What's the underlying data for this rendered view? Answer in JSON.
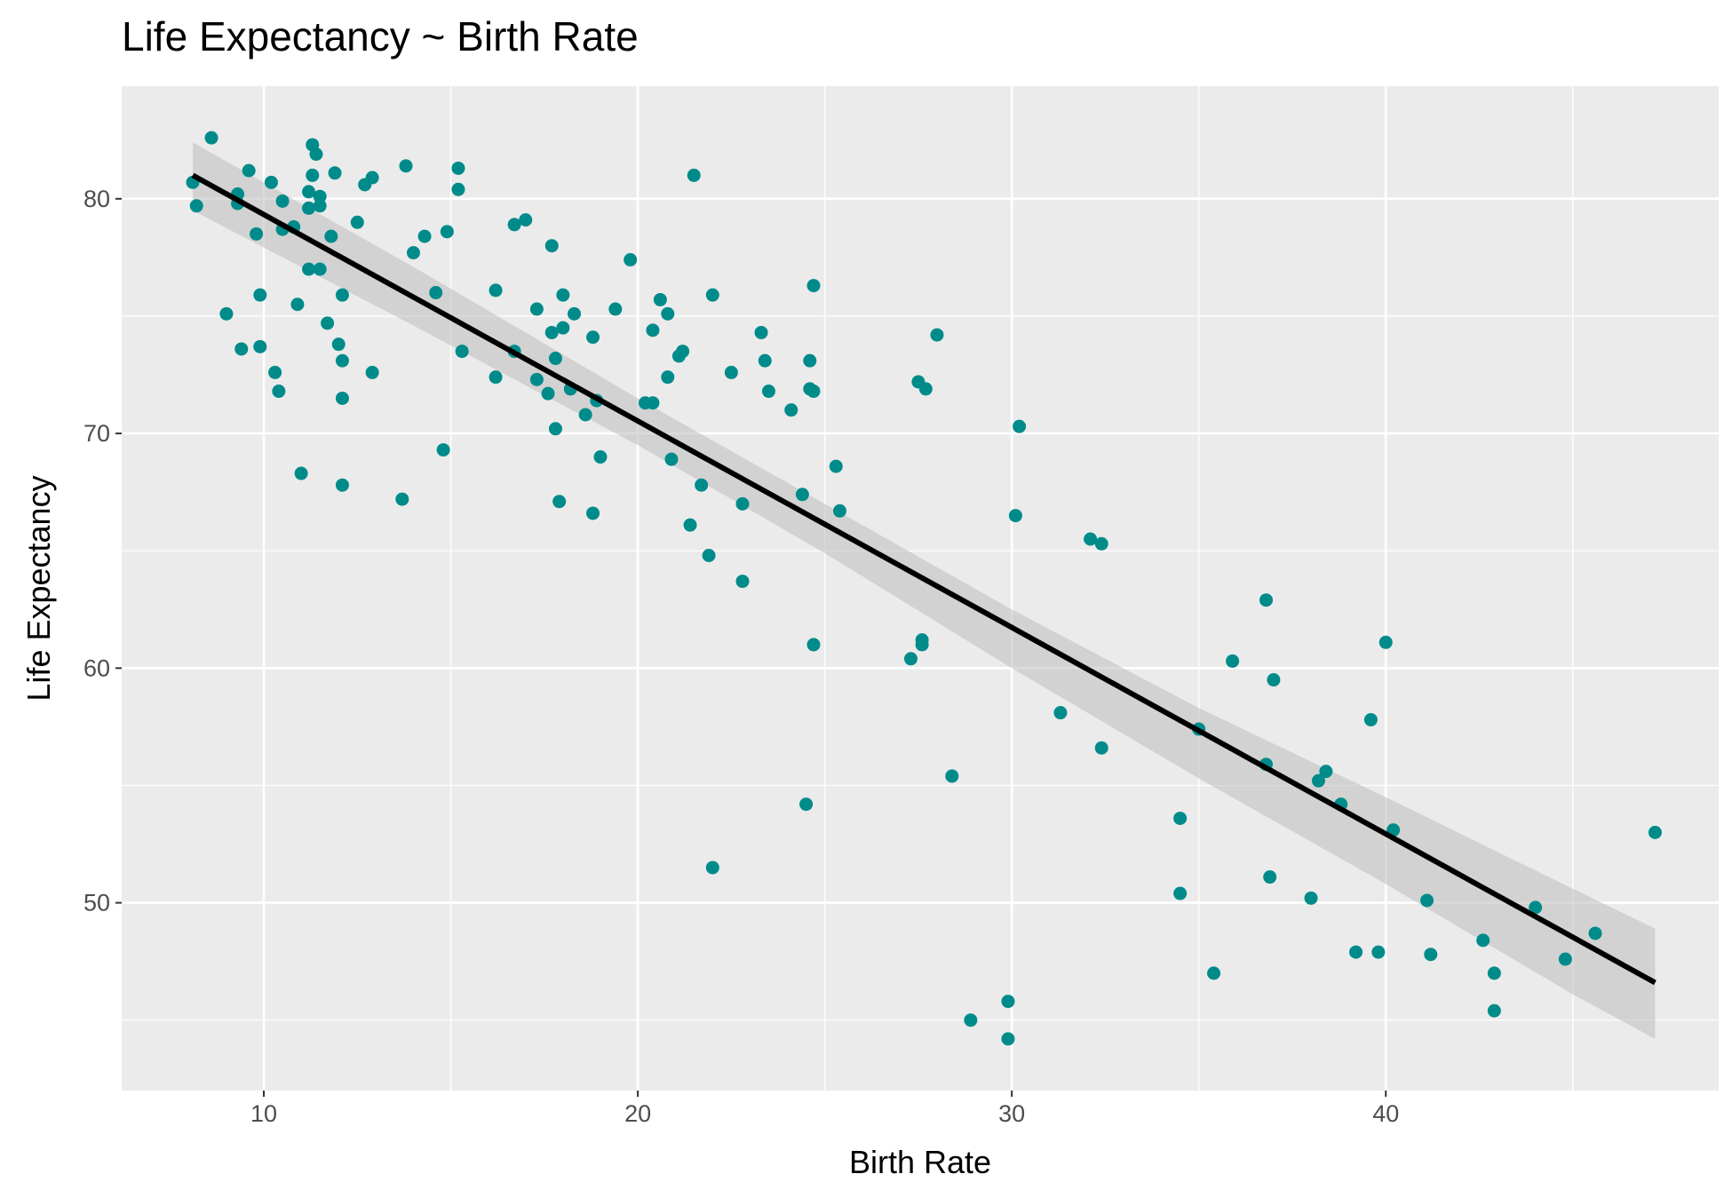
{
  "chart_data": {
    "type": "scatter",
    "title": "Life Expectancy ~ Birth Rate",
    "xlabel": "Birth Rate",
    "ylabel": "Life Expectancy",
    "xlim": [
      6.2,
      48.9
    ],
    "ylim": [
      42.0,
      84.8
    ],
    "x_ticks": [
      10,
      20,
      30,
      40
    ],
    "y_ticks": [
      50,
      60,
      70,
      80
    ],
    "grid": true,
    "panel_background": "#EBEBEB",
    "point_color": "#008B8B",
    "line_color": "#000000",
    "ribbon_color": "#BEBEBE",
    "points": [
      {
        "x": 8.1,
        "y": 80.7
      },
      {
        "x": 8.6,
        "y": 82.6
      },
      {
        "x": 8.2,
        "y": 79.7
      },
      {
        "x": 9.0,
        "y": 75.1
      },
      {
        "x": 9.3,
        "y": 80.2
      },
      {
        "x": 9.6,
        "y": 81.2
      },
      {
        "x": 9.3,
        "y": 79.8
      },
      {
        "x": 9.8,
        "y": 78.5
      },
      {
        "x": 9.9,
        "y": 75.9
      },
      {
        "x": 9.9,
        "y": 73.7
      },
      {
        "x": 9.4,
        "y": 73.6
      },
      {
        "x": 10.2,
        "y": 80.7
      },
      {
        "x": 10.5,
        "y": 79.9
      },
      {
        "x": 10.5,
        "y": 78.7
      },
      {
        "x": 10.8,
        "y": 78.8
      },
      {
        "x": 10.3,
        "y": 72.6
      },
      {
        "x": 10.4,
        "y": 71.8
      },
      {
        "x": 10.9,
        "y": 75.5
      },
      {
        "x": 11.0,
        "y": 68.3
      },
      {
        "x": 11.3,
        "y": 82.3
      },
      {
        "x": 11.4,
        "y": 81.9
      },
      {
        "x": 11.3,
        "y": 81.0
      },
      {
        "x": 11.2,
        "y": 80.3
      },
      {
        "x": 11.5,
        "y": 80.1
      },
      {
        "x": 11.5,
        "y": 79.7
      },
      {
        "x": 11.2,
        "y": 79.6
      },
      {
        "x": 11.2,
        "y": 77.0
      },
      {
        "x": 11.5,
        "y": 77.0
      },
      {
        "x": 11.9,
        "y": 81.1
      },
      {
        "x": 11.8,
        "y": 78.4
      },
      {
        "x": 11.7,
        "y": 74.7
      },
      {
        "x": 12.0,
        "y": 73.8
      },
      {
        "x": 12.1,
        "y": 75.9
      },
      {
        "x": 12.1,
        "y": 73.1
      },
      {
        "x": 12.1,
        "y": 71.5
      },
      {
        "x": 12.1,
        "y": 67.8
      },
      {
        "x": 12.5,
        "y": 79.0
      },
      {
        "x": 12.7,
        "y": 80.6
      },
      {
        "x": 12.9,
        "y": 80.9
      },
      {
        "x": 12.9,
        "y": 72.6
      },
      {
        "x": 13.7,
        "y": 67.2
      },
      {
        "x": 13.8,
        "y": 81.4
      },
      {
        "x": 14.0,
        "y": 77.7
      },
      {
        "x": 14.3,
        "y": 78.4
      },
      {
        "x": 14.6,
        "y": 76.0
      },
      {
        "x": 14.8,
        "y": 69.3
      },
      {
        "x": 14.9,
        "y": 78.6
      },
      {
        "x": 15.2,
        "y": 81.3
      },
      {
        "x": 15.2,
        "y": 80.4
      },
      {
        "x": 15.3,
        "y": 73.5
      },
      {
        "x": 16.2,
        "y": 76.1
      },
      {
        "x": 16.2,
        "y": 72.4
      },
      {
        "x": 16.7,
        "y": 78.9
      },
      {
        "x": 17.0,
        "y": 79.1
      },
      {
        "x": 16.7,
        "y": 73.5
      },
      {
        "x": 17.3,
        "y": 75.3
      },
      {
        "x": 17.3,
        "y": 72.3
      },
      {
        "x": 17.6,
        "y": 71.7
      },
      {
        "x": 17.7,
        "y": 78.0
      },
      {
        "x": 17.7,
        "y": 74.3
      },
      {
        "x": 17.8,
        "y": 73.2
      },
      {
        "x": 17.8,
        "y": 70.2
      },
      {
        "x": 17.9,
        "y": 67.1
      },
      {
        "x": 18.0,
        "y": 75.9
      },
      {
        "x": 18.0,
        "y": 74.5
      },
      {
        "x": 18.2,
        "y": 71.9
      },
      {
        "x": 18.3,
        "y": 75.1
      },
      {
        "x": 18.6,
        "y": 70.8
      },
      {
        "x": 18.8,
        "y": 74.1
      },
      {
        "x": 18.9,
        "y": 71.4
      },
      {
        "x": 18.8,
        "y": 66.6
      },
      {
        "x": 19.0,
        "y": 69.0
      },
      {
        "x": 19.4,
        "y": 75.3
      },
      {
        "x": 19.8,
        "y": 77.4
      },
      {
        "x": 20.2,
        "y": 71.3
      },
      {
        "x": 20.4,
        "y": 74.4
      },
      {
        "x": 20.4,
        "y": 71.3
      },
      {
        "x": 20.6,
        "y": 75.7
      },
      {
        "x": 20.8,
        "y": 75.1
      },
      {
        "x": 20.8,
        "y": 72.4
      },
      {
        "x": 20.9,
        "y": 68.9
      },
      {
        "x": 21.1,
        "y": 73.3
      },
      {
        "x": 21.2,
        "y": 73.5
      },
      {
        "x": 21.4,
        "y": 66.1
      },
      {
        "x": 21.5,
        "y": 81.0
      },
      {
        "x": 21.7,
        "y": 67.8
      },
      {
        "x": 21.9,
        "y": 64.8
      },
      {
        "x": 22.0,
        "y": 75.9
      },
      {
        "x": 22.0,
        "y": 51.5
      },
      {
        "x": 22.5,
        "y": 72.6
      },
      {
        "x": 22.8,
        "y": 67.0
      },
      {
        "x": 22.8,
        "y": 63.7
      },
      {
        "x": 23.3,
        "y": 74.3
      },
      {
        "x": 23.4,
        "y": 73.1
      },
      {
        "x": 23.5,
        "y": 71.8
      },
      {
        "x": 24.1,
        "y": 71.0
      },
      {
        "x": 24.4,
        "y": 67.4
      },
      {
        "x": 24.5,
        "y": 54.2
      },
      {
        "x": 24.6,
        "y": 73.1
      },
      {
        "x": 24.6,
        "y": 71.9
      },
      {
        "x": 24.7,
        "y": 71.8
      },
      {
        "x": 24.7,
        "y": 76.3
      },
      {
        "x": 24.7,
        "y": 61.0
      },
      {
        "x": 25.3,
        "y": 68.6
      },
      {
        "x": 25.4,
        "y": 66.7
      },
      {
        "x": 27.3,
        "y": 60.4
      },
      {
        "x": 27.5,
        "y": 72.2
      },
      {
        "x": 27.6,
        "y": 61.2
      },
      {
        "x": 27.6,
        "y": 61.0
      },
      {
        "x": 27.7,
        "y": 71.9
      },
      {
        "x": 28.0,
        "y": 74.2
      },
      {
        "x": 28.4,
        "y": 55.4
      },
      {
        "x": 28.9,
        "y": 45.0
      },
      {
        "x": 29.9,
        "y": 45.8
      },
      {
        "x": 29.9,
        "y": 44.2
      },
      {
        "x": 30.1,
        "y": 66.5
      },
      {
        "x": 30.2,
        "y": 70.3
      },
      {
        "x": 31.3,
        "y": 58.1
      },
      {
        "x": 32.1,
        "y": 65.5
      },
      {
        "x": 32.4,
        "y": 65.3
      },
      {
        "x": 32.4,
        "y": 56.6
      },
      {
        "x": 34.5,
        "y": 53.6
      },
      {
        "x": 34.5,
        "y": 50.4
      },
      {
        "x": 35.0,
        "y": 57.4
      },
      {
        "x": 35.4,
        "y": 47.0
      },
      {
        "x": 35.9,
        "y": 60.3
      },
      {
        "x": 36.8,
        "y": 62.9
      },
      {
        "x": 36.8,
        "y": 55.9
      },
      {
        "x": 36.9,
        "y": 51.1
      },
      {
        "x": 37.0,
        "y": 59.5
      },
      {
        "x": 38.0,
        "y": 50.2
      },
      {
        "x": 38.2,
        "y": 55.2
      },
      {
        "x": 38.4,
        "y": 55.6
      },
      {
        "x": 38.8,
        "y": 54.2
      },
      {
        "x": 39.2,
        "y": 47.9
      },
      {
        "x": 39.6,
        "y": 57.8
      },
      {
        "x": 39.8,
        "y": 47.9
      },
      {
        "x": 40.0,
        "y": 61.1
      },
      {
        "x": 40.2,
        "y": 53.1
      },
      {
        "x": 41.1,
        "y": 50.1
      },
      {
        "x": 41.2,
        "y": 47.8
      },
      {
        "x": 42.6,
        "y": 48.4
      },
      {
        "x": 42.9,
        "y": 47.0
      },
      {
        "x": 42.9,
        "y": 45.4
      },
      {
        "x": 44.0,
        "y": 49.8
      },
      {
        "x": 44.8,
        "y": 47.6
      },
      {
        "x": 45.6,
        "y": 48.7
      },
      {
        "x": 47.2,
        "y": 53.0
      }
    ],
    "fit_line": {
      "x": [
        8.1,
        47.2
      ],
      "y": [
        81.0,
        46.6
      ]
    },
    "confidence_band": {
      "x": [
        8.1,
        14.0,
        20.0,
        25.0,
        30.0,
        35.0,
        40.0,
        45.0,
        47.2
      ],
      "upper": [
        82.4,
        77.1,
        71.5,
        67.0,
        62.5,
        58.3,
        54.5,
        50.6,
        48.9
      ],
      "lower": [
        79.5,
        74.6,
        69.5,
        64.9,
        60.0,
        55.3,
        50.8,
        46.1,
        44.2
      ]
    }
  }
}
